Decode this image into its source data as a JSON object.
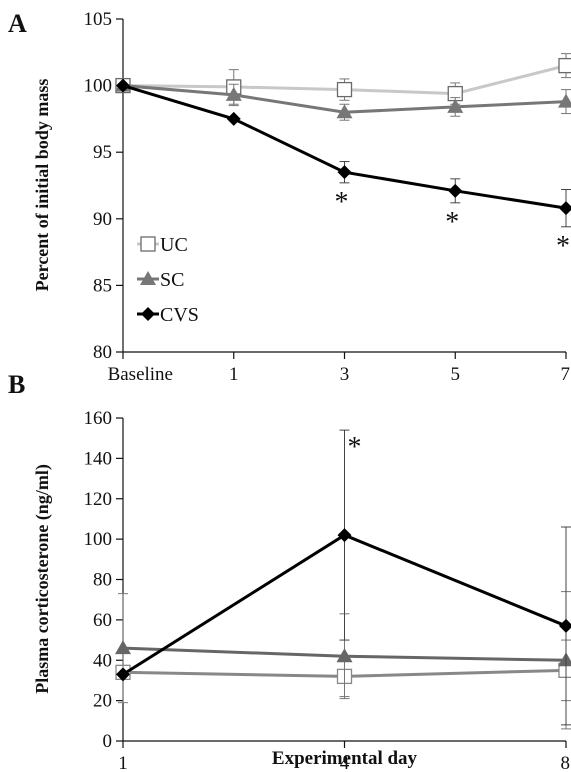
{
  "chart_data": [
    {
      "type": "line",
      "panel_label": "A",
      "title": "",
      "xlabel": "",
      "ylabel": "Percent of initial body mass",
      "categories": [
        "Baseline",
        "1",
        "3",
        "5",
        "7"
      ],
      "ylim": [
        80,
        105
      ],
      "yticks": [
        "80",
        "85",
        "90",
        "95",
        "100",
        "105"
      ],
      "legend": {
        "placement": "lower-left",
        "entries": [
          "UC",
          "SC",
          "CVS"
        ]
      },
      "series": [
        {
          "name": "UC",
          "marker": "open-square",
          "color": "#c8c8c8",
          "values": [
            100,
            99.9,
            99.7,
            99.4,
            101.5
          ],
          "errors": [
            0,
            1.3,
            0.8,
            0.8,
            0.9
          ]
        },
        {
          "name": "SC",
          "marker": "triangle",
          "color": "#777777",
          "values": [
            100,
            99.3,
            98.0,
            98.4,
            98.8
          ],
          "errors": [
            0,
            0.8,
            0.6,
            0.7,
            0.9
          ]
        },
        {
          "name": "CVS",
          "marker": "diamond",
          "color": "#000000",
          "values": [
            100,
            97.5,
            93.5,
            92.1,
            90.8
          ],
          "errors": [
            0,
            0,
            0.8,
            0.9,
            1.4
          ]
        }
      ],
      "annotations": [
        {
          "text": "*",
          "category": "3"
        },
        {
          "text": "*",
          "category": "5"
        },
        {
          "text": "*",
          "category": "7"
        }
      ]
    },
    {
      "type": "line",
      "panel_label": "B",
      "title": "",
      "xlabel": "Experimental day",
      "ylabel": "Plasma corticosterone (ng/ml)",
      "categories": [
        "1",
        "4",
        "8"
      ],
      "ylim": [
        0,
        160
      ],
      "yticks": [
        "0",
        "20",
        "40",
        "60",
        "80",
        "100",
        "120",
        "140",
        "160"
      ],
      "series": [
        {
          "name": "UC",
          "marker": "open-square",
          "color": "#888888",
          "values": [
            34,
            32,
            35
          ],
          "errors": [
            0,
            10,
            15
          ]
        },
        {
          "name": "SC",
          "marker": "triangle",
          "color": "#666666",
          "values": [
            46,
            42,
            40
          ],
          "errors": [
            27,
            21,
            34
          ]
        },
        {
          "name": "CVS",
          "marker": "diamond",
          "color": "#000000",
          "values": [
            33,
            102,
            57
          ],
          "errors": [
            0,
            52,
            49
          ]
        }
      ],
      "annotations": [
        {
          "text": "*",
          "category": "4"
        }
      ]
    }
  ]
}
